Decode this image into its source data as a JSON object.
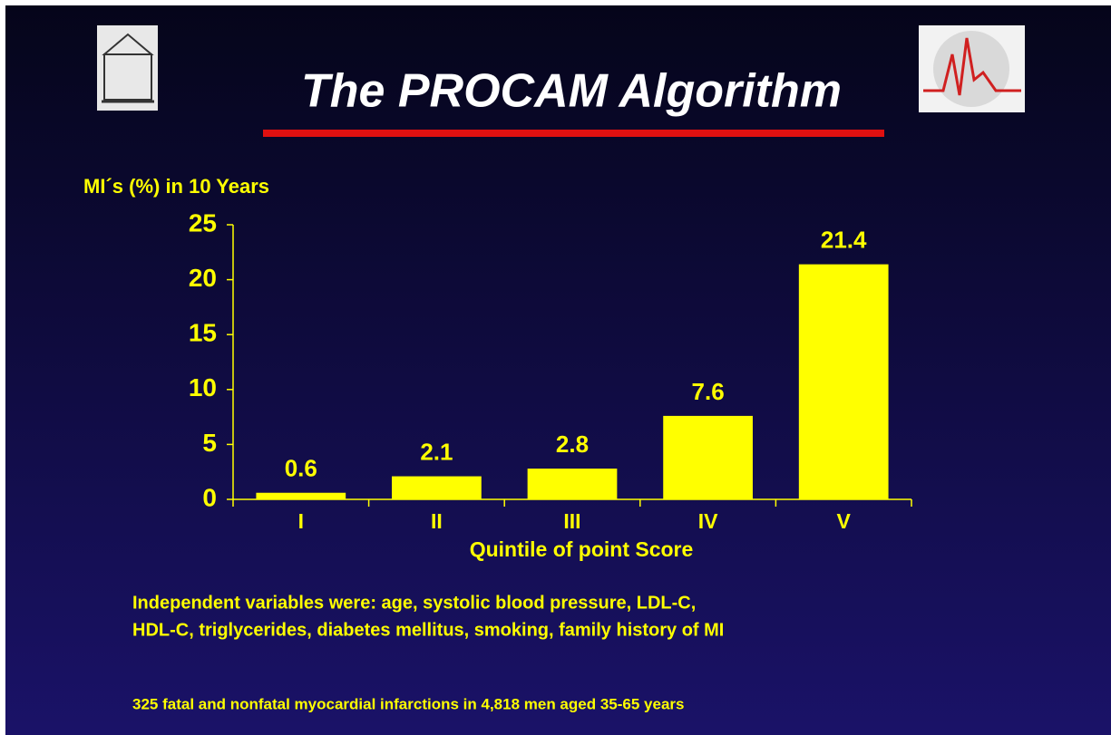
{
  "chart_data": {
    "type": "bar",
    "title": "The PROCAM Algorithm",
    "y_label": "MI´s (%) in 10 Years",
    "x_label": "Quintile of point Score",
    "categories": [
      "I",
      "II",
      "III",
      "IV",
      "V"
    ],
    "values": [
      0.6,
      2.1,
      2.8,
      7.6,
      21.4
    ],
    "color": "#ffff00",
    "ylim": [
      0,
      25
    ],
    "yticks": [
      0,
      5,
      10,
      15,
      20,
      25
    ],
    "notes": [
      "Independent variables were: age, systolic blood pressure, LDL-C,",
      "HDL-C, triglycerides, diabetes mellitus, smoking, family history of MI",
      "325 fatal and nonfatal myocardial infarctions in 4,818 men aged 35-65 years"
    ]
  }
}
